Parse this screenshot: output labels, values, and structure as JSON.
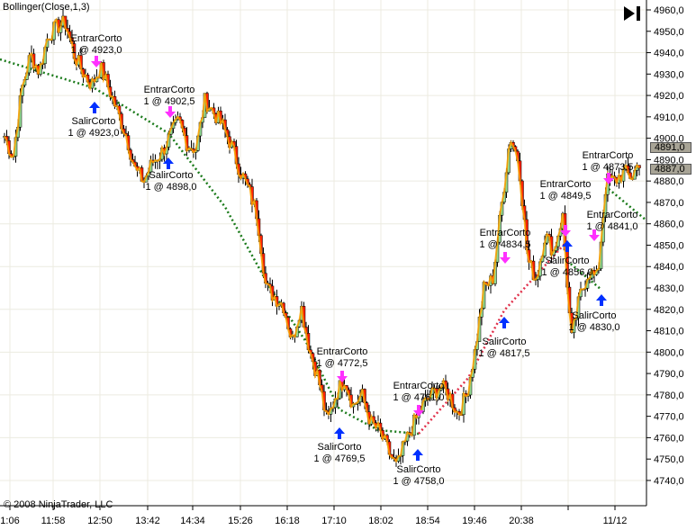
{
  "chart_data": {
    "type": "candlestick",
    "title": "Bollinger(Close,1,3)",
    "ylim": [
      4735,
      4965
    ],
    "y_ticks": [
      "4740,0",
      "4750,0",
      "4760,0",
      "4770,0",
      "4780,0",
      "4790,0",
      "4800,0",
      "4810,0",
      "4820,0",
      "4830,0",
      "4840,0",
      "4850,0",
      "4860,0",
      "4870,0",
      "4880,0",
      "4890,0",
      "4900,0",
      "4910,0",
      "4920,0",
      "4930,0",
      "4940,0",
      "4950,0",
      "4960,0"
    ],
    "x_ticks": [
      "1:06",
      "11:58",
      "12:50",
      "13:42",
      "14:34",
      "15:26",
      "16:18",
      "17:10",
      "18:02",
      "18:54",
      "19:46",
      "20:38",
      "",
      "11/12"
    ],
    "grid": true,
    "close": [
      4901,
      4891,
      4923,
      4939,
      4931,
      4948,
      4952,
      4954,
      4939,
      4931,
      4925,
      4933,
      4923,
      4912,
      4901,
      4885,
      4880,
      4889,
      4893,
      4901,
      4908,
      4897,
      4895,
      4918,
      4912,
      4906,
      4897,
      4885,
      4876,
      4864,
      4830,
      4826,
      4822,
      4805,
      4822,
      4801,
      4788,
      4767,
      4780,
      4788,
      4775,
      4780,
      4767,
      4763,
      4754,
      4746,
      4758,
      4767,
      4775,
      4780,
      4784,
      4780,
      4771,
      4780,
      4801,
      4830,
      4834,
      4868,
      4901,
      4889,
      4843,
      4834,
      4855,
      4847,
      4864,
      4805,
      4826,
      4838,
      4834,
      4880,
      4880,
      4884,
      4882,
      4891
    ],
    "last_prices": [
      "4891,0",
      "4887,0"
    ],
    "colors": {
      "up": "#90d890",
      "down": "#ff2000",
      "close_line": "#ffa500",
      "entry": "#ff30ff",
      "exit": "#0030ff",
      "trend": "#1a7a1a",
      "trend_alt": "#e0304a",
      "grid": "#ecebe0"
    },
    "trades": [
      {
        "entry": "EntrarCorto",
        "entry_qty": "1 @ 4923,0",
        "exit": "SalirCorto",
        "exit_qty": "1 @ 4923,0"
      },
      {
        "entry": "EntrarCorto",
        "entry_qty": "1 @ 4902,5",
        "exit": "SalirCorto",
        "exit_qty": "1 @ 4898,0"
      },
      {
        "entry": "EntrarCorto",
        "entry_qty": "1 @ 4772,5",
        "exit": "SalirCorto",
        "exit_qty": "1 @ 4769,5"
      },
      {
        "entry": "EntrarCorto",
        "entry_qty": "1 @ 4761,0",
        "exit": "SalirCorto",
        "exit_qty": "1 @ 4758,0"
      },
      {
        "entry": "EntrarCorto",
        "entry_qty": "1 @ 4834,5",
        "exit": "SalirCorto",
        "exit_qty": "1 @ 4817,5"
      },
      {
        "entry": "EntrarCorto",
        "entry_qty": "1 @ 4849,5",
        "exit": "SalirCorto",
        "exit_qty": "1 @ 4856,0"
      },
      {
        "entry": "EntrarCorto",
        "entry_qty": "1 @ 4841,0",
        "exit": "SalirCorto",
        "exit_qty": "1 @ 4830,0"
      },
      {
        "entry": "EntrarCorto",
        "entry_qty": "1 @ 4873,5"
      }
    ]
  },
  "footer": {
    "copyright": "© 2008 NinjaTrader, LLC"
  },
  "toolbar": {
    "play_icon": "skip-to-end-icon"
  }
}
